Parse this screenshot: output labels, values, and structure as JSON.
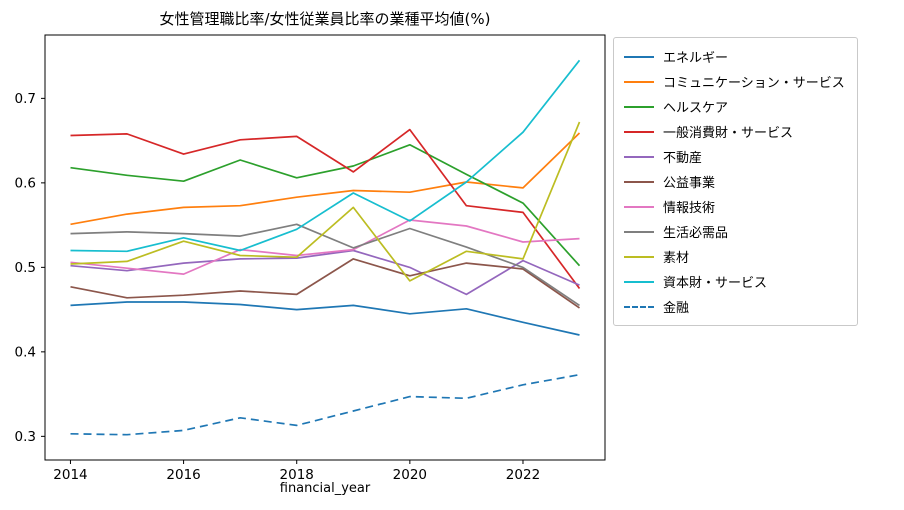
{
  "chart_data": {
    "type": "line",
    "title": "女性管理職比率/女性従業員比率の業種平均値(%)",
    "xlabel": "financial_year",
    "ylabel": "",
    "x": [
      2014,
      2015,
      2016,
      2017,
      2018,
      2019,
      2020,
      2021,
      2022,
      2023
    ],
    "xlim": [
      2013.55,
      2023.45
    ],
    "ylim": [
      0.272,
      0.775
    ],
    "x_ticks": {
      "values": [
        2014,
        2016,
        2018,
        2020,
        2022
      ],
      "labels": [
        "2014",
        "2016",
        "2018",
        "2020",
        "2022"
      ]
    },
    "y_ticks": {
      "values": [
        0.3,
        0.4,
        0.5,
        0.6,
        0.7
      ],
      "labels": [
        "0.3",
        "0.4",
        "0.5",
        "0.6",
        "0.7"
      ]
    },
    "grid": false,
    "legend_position": "outside-right",
    "series": [
      {
        "name": "エネルギー",
        "color": "#1f77b4",
        "style": "solid",
        "values": [
          0.455,
          0.459,
          0.459,
          0.456,
          0.45,
          0.455,
          0.445,
          0.451,
          0.435,
          0.42
        ]
      },
      {
        "name": "コミュニケーション・サービス",
        "color": "#ff7f0e",
        "style": "solid",
        "values": [
          0.551,
          0.563,
          0.571,
          0.573,
          0.583,
          0.591,
          0.589,
          0.601,
          0.594,
          0.659
        ]
      },
      {
        "name": "ヘルスケア",
        "color": "#2ca02c",
        "style": "solid",
        "values": [
          0.618,
          0.609,
          0.602,
          0.627,
          0.606,
          0.62,
          0.645,
          0.61,
          0.576,
          0.502
        ]
      },
      {
        "name": "一般消費財・サービス",
        "color": "#d62728",
        "style": "solid",
        "values": [
          0.656,
          0.658,
          0.634,
          0.651,
          0.655,
          0.613,
          0.663,
          0.573,
          0.565,
          0.475
        ]
      },
      {
        "name": "不動産",
        "color": "#9467bd",
        "style": "solid",
        "values": [
          0.502,
          0.496,
          0.505,
          0.51,
          0.511,
          0.52,
          0.5,
          0.468,
          0.508,
          0.479
        ]
      },
      {
        "name": "公益事業",
        "color": "#8c564b",
        "style": "solid",
        "values": [
          0.477,
          0.464,
          0.467,
          0.472,
          0.468,
          0.51,
          0.49,
          0.505,
          0.498,
          0.452
        ]
      },
      {
        "name": "情報技術",
        "color": "#e377c2",
        "style": "solid",
        "values": [
          0.506,
          0.499,
          0.492,
          0.521,
          0.514,
          0.521,
          0.556,
          0.549,
          0.53,
          0.534
        ]
      },
      {
        "name": "生活必需品",
        "color": "#7f7f7f",
        "style": "solid",
        "values": [
          0.54,
          0.542,
          0.54,
          0.537,
          0.551,
          0.523,
          0.546,
          0.524,
          0.5,
          0.455
        ]
      },
      {
        "name": "素材",
        "color": "#bcbd22",
        "style": "solid",
        "values": [
          0.504,
          0.507,
          0.531,
          0.514,
          0.512,
          0.571,
          0.484,
          0.519,
          0.51,
          0.672
        ]
      },
      {
        "name": "資本財・サービス",
        "color": "#17becf",
        "style": "solid",
        "values": [
          0.52,
          0.519,
          0.535,
          0.52,
          0.545,
          0.588,
          0.555,
          0.601,
          0.66,
          0.745
        ]
      },
      {
        "name": "金融",
        "color": "#1f77b4",
        "style": "dashed",
        "values": [
          0.303,
          0.302,
          0.307,
          0.322,
          0.313,
          0.33,
          0.347,
          0.345,
          0.361,
          0.373
        ]
      }
    ]
  }
}
